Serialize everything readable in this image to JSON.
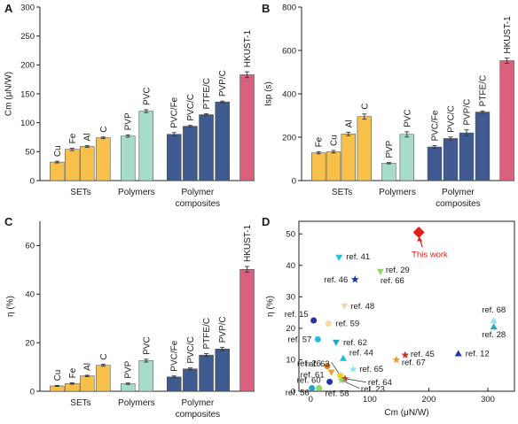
{
  "colors": {
    "sets": "#F7C04A",
    "polymers": "#A6DDC9",
    "composites": "#3F5A91",
    "hkust": "#D9617E",
    "this_work": "#E0201B"
  },
  "chart_data": [
    {
      "panel": "A",
      "type": "bar",
      "ylabel": "Cm (μN/W)",
      "ylim": [
        0,
        300
      ],
      "yticks": [
        0,
        50,
        100,
        150,
        200,
        250,
        300
      ],
      "group_labels": [
        "SETs",
        "Polymers",
        "Polymer",
        "composites"
      ],
      "bars": [
        {
          "label": "Cu",
          "value": 32,
          "err": 1.5,
          "group": "sets"
        },
        {
          "label": "Fe",
          "value": 54,
          "err": 2,
          "group": "sets"
        },
        {
          "label": "Al",
          "value": 59,
          "err": 1.5,
          "group": "sets"
        },
        {
          "label": "C",
          "value": 74,
          "err": 1.5,
          "group": "sets"
        },
        {
          "label": "PVP",
          "value": 77,
          "err": 2,
          "group": "polymers"
        },
        {
          "label": "PVC",
          "value": 120,
          "err": 2.5,
          "group": "polymers"
        },
        {
          "label": "PVC/Fe",
          "value": 80,
          "err": 3,
          "group": "composites"
        },
        {
          "label": "PVC/C",
          "value": 94,
          "err": 1.5,
          "group": "composites"
        },
        {
          "label": "PTFE/C",
          "value": 114,
          "err": 1.5,
          "group": "composites"
        },
        {
          "label": "PVP/C",
          "value": 136,
          "err": 1.5,
          "group": "composites"
        },
        {
          "label": "HKUST-1",
          "value": 183,
          "err": 5,
          "group": "hkust"
        }
      ]
    },
    {
      "panel": "B",
      "type": "bar",
      "ylabel": "Isp (s)",
      "ylim": [
        0,
        800
      ],
      "yticks": [
        0,
        200,
        400,
        600,
        800
      ],
      "group_labels": [
        "SETs",
        "Polymers",
        "Polymer",
        "composites"
      ],
      "bars": [
        {
          "label": "Fe",
          "value": 128,
          "err": 5,
          "group": "sets"
        },
        {
          "label": "Cu",
          "value": 133,
          "err": 6,
          "group": "sets"
        },
        {
          "label": "Al",
          "value": 215,
          "err": 8,
          "group": "sets"
        },
        {
          "label": "C",
          "value": 295,
          "err": 12,
          "group": "sets"
        },
        {
          "label": "PVP",
          "value": 80,
          "err": 3,
          "group": "polymers"
        },
        {
          "label": "PVC",
          "value": 213,
          "err": 12,
          "group": "polymers"
        },
        {
          "label": "PVC/Fe",
          "value": 155,
          "err": 6,
          "group": "composites"
        },
        {
          "label": "PVC/C",
          "value": 194,
          "err": 7,
          "group": "composites"
        },
        {
          "label": "PVP/C",
          "value": 220,
          "err": 14,
          "group": "composites"
        },
        {
          "label": "PTFE/C",
          "value": 316,
          "err": 5,
          "group": "composites"
        },
        {
          "label": "HKUST-1",
          "value": 553,
          "err": 12,
          "group": "hkust"
        }
      ]
    },
    {
      "panel": "C",
      "type": "bar",
      "ylabel": "η (%)",
      "ylim": [
        0,
        70
      ],
      "yticks": [
        0,
        20,
        40,
        60
      ],
      "group_labels": [
        "SETs",
        "Polymers",
        "Polymer",
        "composites"
      ],
      "bars": [
        {
          "label": "Cu",
          "value": 2.2,
          "err": 0.2,
          "group": "sets"
        },
        {
          "label": "Fe",
          "value": 3.2,
          "err": 0.3,
          "group": "sets"
        },
        {
          "label": "Al",
          "value": 6.3,
          "err": 0.3,
          "group": "sets"
        },
        {
          "label": "C",
          "value": 10.7,
          "err": 0.4,
          "group": "sets"
        },
        {
          "label": "PVP",
          "value": 3.1,
          "err": 0.3,
          "group": "polymers"
        },
        {
          "label": "PVC",
          "value": 12.6,
          "err": 0.6,
          "group": "polymers"
        },
        {
          "label": "PVC/Fe",
          "value": 5.9,
          "err": 0.4,
          "group": "composites"
        },
        {
          "label": "PVC/C",
          "value": 9.2,
          "err": 0.4,
          "group": "composites"
        },
        {
          "label": "PTFE/C",
          "value": 14.9,
          "err": 0.6,
          "group": "composites"
        },
        {
          "label": "PVP/C",
          "value": 17.4,
          "err": 0.7,
          "group": "composites"
        },
        {
          "label": "HKUST-1",
          "value": 50.2,
          "err": 1.2,
          "group": "hkust"
        }
      ]
    },
    {
      "panel": "D",
      "type": "scatter",
      "xlabel": "Cm (μN/W)",
      "ylabel": "η (%)",
      "xlim": [
        -20,
        345
      ],
      "ylim": [
        0,
        54
      ],
      "xticks": [
        0,
        100,
        200,
        300
      ],
      "yticks": [
        0,
        10,
        20,
        30,
        40,
        50
      ],
      "points": [
        {
          "label": "ref. 41",
          "x": 48,
          "y": 42.5,
          "shape": "tri-down",
          "color": "#22C0E0"
        },
        {
          "label": "ref. 29",
          "x": 118,
          "y": 38,
          "shape": "tri-down",
          "color": "#8DD86A"
        },
        {
          "label": "ref. 66",
          "x": 118,
          "y": 38,
          "shape": "none",
          "color": "#8DD86A"
        },
        {
          "label": "ref. 46",
          "x": 75,
          "y": 35.5,
          "shape": "star",
          "color": "#2632A8"
        },
        {
          "label": "ref. 48",
          "x": 57,
          "y": 27,
          "shape": "tri-down",
          "color": "#F2D9A2"
        },
        {
          "label": "ref. 15",
          "x": 5,
          "y": 22.5,
          "shape": "circle",
          "color": "#2632A8"
        },
        {
          "label": "ref. 59",
          "x": 30,
          "y": 21.5,
          "shape": "circle",
          "color": "#F2D9A2"
        },
        {
          "label": "ref. 68",
          "x": 310,
          "y": 22.5,
          "shape": "tri-up",
          "color": "#9BE3EC"
        },
        {
          "label": "ref. 28",
          "x": 310,
          "y": 20.5,
          "shape": "tri-up",
          "color": "#22A6C8"
        },
        {
          "label": "ref. 57",
          "x": 12,
          "y": 16.5,
          "shape": "circle",
          "color": "#22C0E0"
        },
        {
          "label": "ref. 62",
          "x": 43,
          "y": 15.5,
          "shape": "tri-down",
          "color": "#22A6C8"
        },
        {
          "label": "ref. 45",
          "x": 160,
          "y": 11.5,
          "shape": "star",
          "color": "#C0392B"
        },
        {
          "label": "ref. 67",
          "x": 145,
          "y": 10,
          "shape": "star",
          "color": "#F0A030"
        },
        {
          "label": "ref. 12",
          "x": 250,
          "y": 12,
          "shape": "tri-up",
          "color": "#2632A8"
        },
        {
          "label": "ref. 44",
          "x": 55,
          "y": 10.5,
          "shape": "tri-up",
          "color": "#22C0E0"
        },
        {
          "label": "ref. 26",
          "x": 28,
          "y": 8,
          "shape": "circle",
          "color": "#E07F1E"
        },
        {
          "label": "ref. 61",
          "x": 35,
          "y": 6,
          "shape": "tri-down",
          "color": "#F0A030"
        },
        {
          "label": "ref. 63",
          "x": 50,
          "y": 5,
          "shape": "circle",
          "color": "#F0D020"
        },
        {
          "label": "ref. 65",
          "x": 72,
          "y": 7,
          "shape": "star",
          "color": "#9BE3EC"
        },
        {
          "label": "ref. 64",
          "x": 58,
          "y": 4,
          "shape": "star",
          "color": "#C0392B"
        },
        {
          "label": "ref. 60",
          "x": 32,
          "y": 3,
          "shape": "circle",
          "color": "#2632A8"
        },
        {
          "label": "ref. 23",
          "x": 52,
          "y": 3.5,
          "shape": "star",
          "color": "#8DD86A"
        },
        {
          "label": "ref. 56",
          "x": 2,
          "y": 1,
          "shape": "circle",
          "color": "#22A6C8"
        },
        {
          "label": "ref. 58",
          "x": 14,
          "y": 1,
          "shape": "circle",
          "color": "#8DD86A"
        },
        {
          "label": "This work",
          "x": 183,
          "y": 50.5,
          "shape": "diamond",
          "color": "#E0201B"
        }
      ]
    }
  ]
}
